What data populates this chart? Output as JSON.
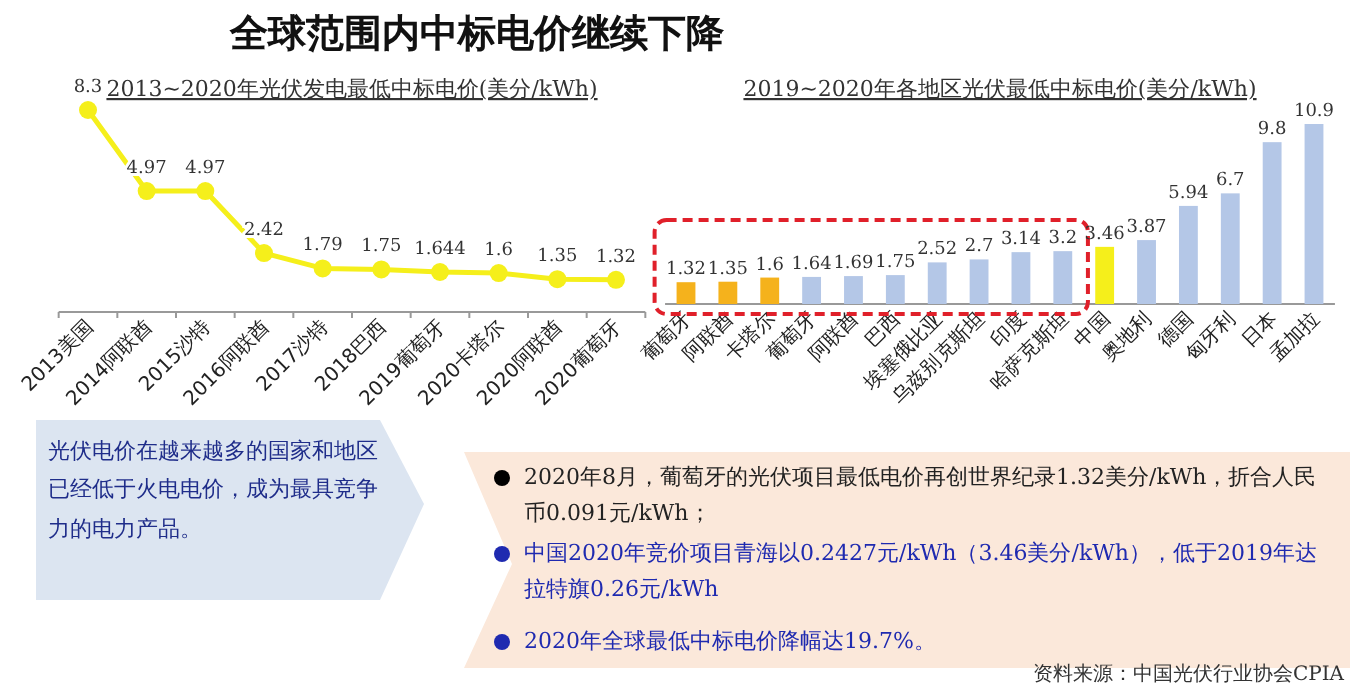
{
  "chart_data": [
    {
      "type": "line",
      "title": "2013~2020年光伏发电最低中标电价(美分/kWh)",
      "categories": [
        "2013美国",
        "2014阿联酋",
        "2015沙特",
        "2016阿联酋",
        "2017沙特",
        "2018巴西",
        "2019葡萄牙",
        "2020卡塔尔",
        "2020阿联酋",
        "2020葡萄牙"
      ],
      "series": [
        {
          "color": "#f5ef1b",
          "values": [
            8.3,
            4.97,
            4.97,
            2.42,
            1.79,
            1.75,
            1.644,
            1.6,
            1.35,
            1.32
          ]
        }
      ],
      "marker": "circle",
      "data_labels": true
    },
    {
      "type": "bar",
      "title": "2019~2020年各地区光伏最低中标电价(美分/kWh)",
      "categories": [
        "葡萄牙",
        "阿联酋",
        "卡塔尔",
        "葡萄牙",
        "阿联酋",
        "巴西",
        "埃塞俄比亚",
        "乌兹别克斯坦",
        "印度",
        "哈萨克斯坦",
        "中国",
        "奥地利",
        "德国",
        "匈牙利",
        "日本",
        "孟加拉"
      ],
      "values": [
        1.32,
        1.35,
        1.6,
        1.64,
        1.69,
        1.75,
        2.52,
        2.7,
        3.14,
        3.2,
        3.46,
        3.87,
        5.94,
        6.7,
        9.8,
        10.9
      ],
      "colors": [
        "#f5b21c",
        "#f5b21c",
        "#f5b21c",
        "#b4c7e7",
        "#b4c7e7",
        "#b4c7e7",
        "#b4c7e7",
        "#b4c7e7",
        "#b4c7e7",
        "#b4c7e7",
        "#f5ef1b",
        "#b4c7e7",
        "#b4c7e7",
        "#b4c7e7",
        "#b4c7e7",
        "#b4c7e7"
      ],
      "data_labels": true
    },
    {
      "type": "other",
      "title": "全球范围内中标电价继续下降",
      "annotations": [
        "光伏电价在越来越多的国家和地区已经低于火电电价，成为最具竞争力的电力产品。",
        "2020年8月，葡萄牙的光伏项目最低电价再创世界纪录1.32美分/kWh，折合人民币0.091元/kWh；",
        "中国2020年竞价项目青海以0.2427元/kWh（3.46美分/kWh），低于2019年达拉特旗0.26元/kWh",
        "2020年全球最低中标电价降幅达19.7%。",
        "资料来源：中国光伏行业协会CPIA"
      ]
    }
  ]
}
